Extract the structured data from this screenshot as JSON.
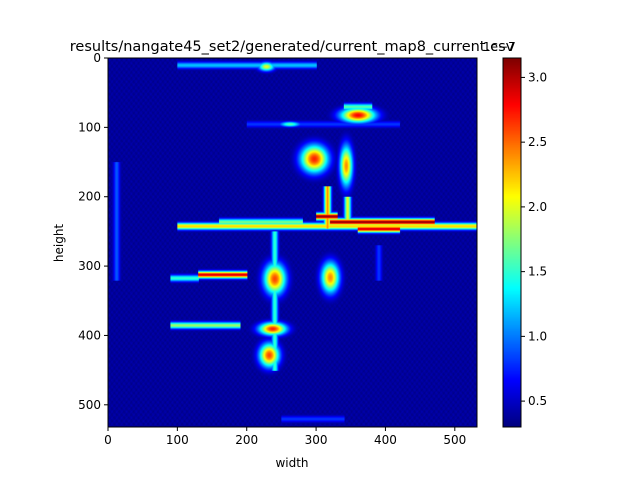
{
  "chart_data": {
    "type": "heatmap",
    "title": "results/nangate45_set2/generated/current_map8_current.csv",
    "xlabel": "width",
    "ylabel": "height",
    "xlim": [
      0,
      532
    ],
    "ylim": [
      532,
      0
    ],
    "x_ticks": [
      0,
      100,
      200,
      300,
      400,
      500
    ],
    "y_ticks": [
      0,
      100,
      200,
      300,
      400,
      500
    ],
    "colormap": "jet",
    "colorbar": {
      "min": 0.3,
      "max": 3.15,
      "ticks": [
        0.5,
        1.0,
        1.5,
        2.0,
        2.5,
        3.0
      ],
      "tick_labels": [
        "0.5",
        "1.0",
        "1.5",
        "2.0",
        "2.5",
        "3.0"
      ],
      "offset_label": "1e−7"
    },
    "background_value": 0.35,
    "features": [
      {
        "shape": "hline",
        "y": 242,
        "x": [
          100,
          532
        ],
        "value": 2.2
      },
      {
        "shape": "hline",
        "y": 236,
        "x": [
          320,
          470
        ],
        "value": 3.1
      },
      {
        "shape": "hline",
        "y": 246,
        "x": [
          360,
          420
        ],
        "value": 2.9
      },
      {
        "shape": "hline",
        "y": 236,
        "x": [
          160,
          280
        ],
        "value": 1.7
      },
      {
        "shape": "hline",
        "y": 228,
        "x": [
          300,
          330
        ],
        "value": 3.1
      },
      {
        "shape": "vline",
        "x": 316,
        "y": [
          185,
          245
        ],
        "value": 2.4
      },
      {
        "shape": "vline",
        "x": 345,
        "y": [
          200,
          240
        ],
        "value": 2.0
      },
      {
        "shape": "blob",
        "x": 297,
        "y": 145,
        "w": 30,
        "h": 30,
        "value": 2.7
      },
      {
        "shape": "blob",
        "x": 343,
        "y": 155,
        "w": 14,
        "h": 45,
        "value": 2.4
      },
      {
        "shape": "blob",
        "x": 360,
        "y": 82,
        "w": 38,
        "h": 16,
        "value": 2.8
      },
      {
        "shape": "hline",
        "y": 70,
        "x": [
          340,
          380
        ],
        "value": 1.6
      },
      {
        "shape": "hline",
        "y": 312,
        "x": [
          130,
          200
        ],
        "value": 2.9
      },
      {
        "shape": "hline",
        "y": 317,
        "x": [
          90,
          130
        ],
        "value": 1.5
      },
      {
        "shape": "vline",
        "x": 240,
        "y": [
          250,
          450
        ],
        "value": 1.5
      },
      {
        "shape": "blob",
        "x": 240,
        "y": 318,
        "w": 24,
        "h": 34,
        "value": 2.6
      },
      {
        "shape": "blob",
        "x": 320,
        "y": 316,
        "w": 20,
        "h": 34,
        "value": 2.4
      },
      {
        "shape": "hline",
        "y": 385,
        "x": [
          90,
          190
        ],
        "value": 1.8
      },
      {
        "shape": "blob",
        "x": 237,
        "y": 390,
        "w": 30,
        "h": 14,
        "value": 2.7
      },
      {
        "shape": "blob",
        "x": 232,
        "y": 428,
        "w": 22,
        "h": 26,
        "value": 2.6
      },
      {
        "shape": "hline",
        "y": 10,
        "x": [
          100,
          300
        ],
        "value": 1.2
      },
      {
        "shape": "blob",
        "x": 228,
        "y": 12,
        "w": 18,
        "h": 10,
        "value": 2.0
      },
      {
        "shape": "vline",
        "x": 12,
        "y": [
          150,
          320
        ],
        "value": 0.9
      },
      {
        "shape": "hline",
        "y": 95,
        "x": [
          200,
          420
        ],
        "value": 0.8
      },
      {
        "shape": "blob",
        "x": 262,
        "y": 95,
        "w": 24,
        "h": 6,
        "value": 1.6
      },
      {
        "shape": "vline",
        "x": 390,
        "y": [
          270,
          320
        ],
        "value": 0.8
      },
      {
        "shape": "hline",
        "y": 520,
        "x": [
          250,
          340
        ],
        "value": 0.8
      }
    ]
  }
}
